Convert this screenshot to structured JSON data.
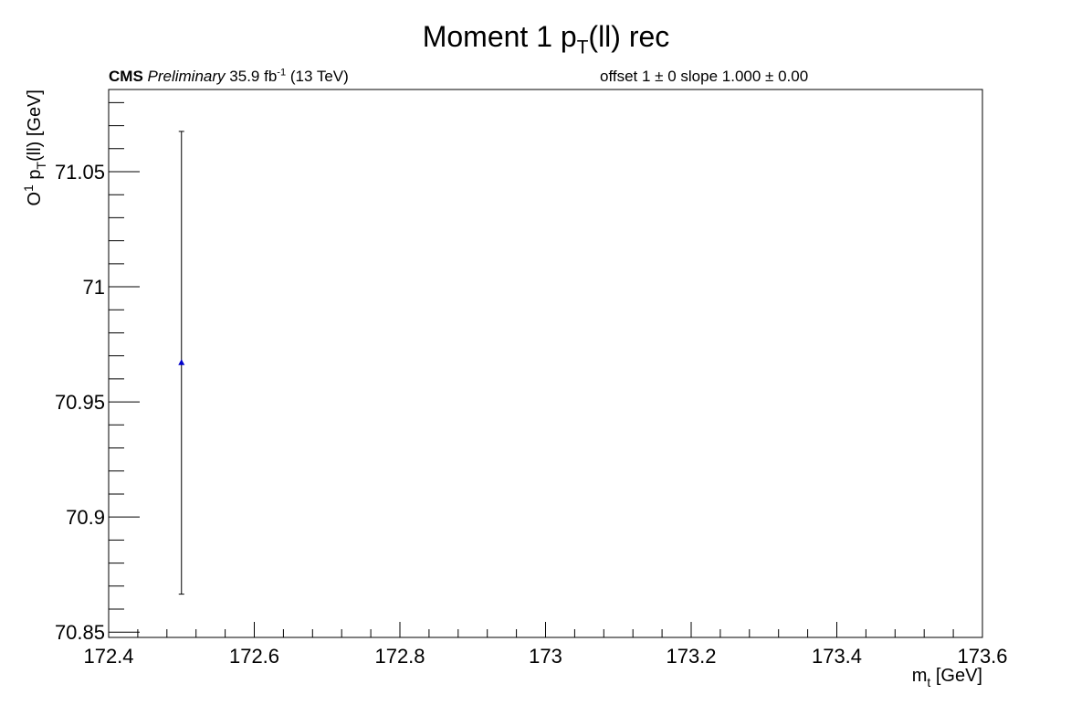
{
  "chart_data": {
    "type": "scatter",
    "title": "Moment 1  p_T(ll) rec",
    "title_parts": {
      "main": "Moment 1  p",
      "sub": "T",
      "tail": "(ll) rec"
    },
    "header_left": {
      "bold": "CMS",
      "italic": "Preliminary",
      "lumi": "35.9 fb",
      "lumi_sup": "-1",
      "energy": "(13 TeV)"
    },
    "header_right": "offset 1 ± 0   slope 1.000 ± 0.00",
    "xlabel": "m_t [GeV]",
    "xlabel_parts": {
      "main": "m",
      "sub": "t",
      "tail": " [GeV]"
    },
    "ylabel": "O^1 p_T(ll) [GeV]",
    "ylabel_parts": {
      "pre": "O",
      "sup": "1",
      "mid": " p",
      "sub": "T",
      "tail": "(ll) [GeV]"
    },
    "xlim": [
      172.4,
      173.6
    ],
    "ylim": [
      70.8477,
      71.0857
    ],
    "xticks": [
      172.4,
      172.6,
      172.8,
      173,
      173.2,
      173.4,
      173.6
    ],
    "xtick_labels": [
      "172.4",
      "172.6",
      "172.8",
      "173",
      "173.2",
      "173.4",
      "173.6"
    ],
    "yticks": [
      70.85,
      70.9,
      70.95,
      71,
      71.05
    ],
    "ytick_labels": [
      "70.85",
      "70.9",
      "70.95",
      "71",
      "71.05"
    ],
    "series": [
      {
        "points": [
          {
            "x": 172.5,
            "y": 70.967,
            "yerr": 0.1005
          }
        ],
        "marker": "triangle",
        "color": "#0000cc"
      }
    ],
    "grid": false,
    "legend": "none"
  }
}
